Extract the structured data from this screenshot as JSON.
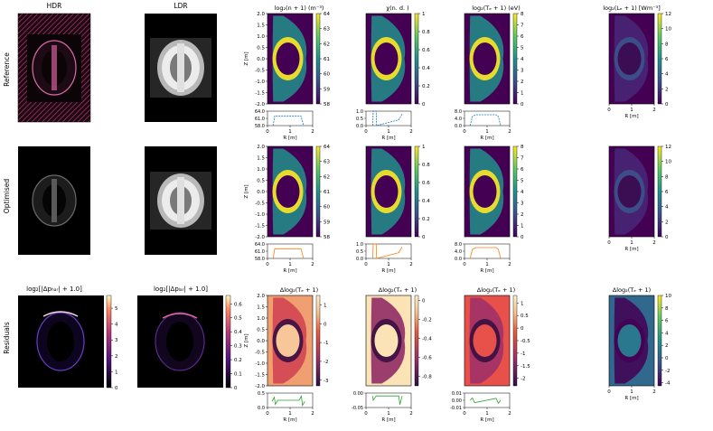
{
  "row_labels": [
    "Reference",
    "Optimised",
    "Residuals"
  ],
  "image_titles": {
    "hdr": "HDR",
    "ldr": "LDR",
    "res_hdr": "log₂[|Δpₕₐᵣ| + 1.0]",
    "res_ldr": "log₂[|Δpₗₐᵣ| + 1.0]"
  },
  "colors": {
    "viridis_low": "#440154",
    "viridis_mid": "#21918c",
    "viridis_high": "#fde725",
    "magma_low": "#000004",
    "magma_high": "#fcfdbf",
    "residual_pos": "#b40426",
    "residual_zero": "#f7f7f7",
    "residual_neg": "#3b4cc0",
    "profile_ref": "#1f77b4",
    "profile_opt": "#ff7f0e",
    "profile_res": "#2ca02c"
  },
  "axis_labels": {
    "r_axis": "R [m]",
    "z_axis": "Z [m]"
  },
  "chart_data": [
    {
      "type": "heatmap",
      "id": "ref-density",
      "title": "log₂(n + 1) (m⁻³)",
      "xlabel": "R [m]",
      "ylabel": "Z [m]",
      "xlim": [
        0,
        2
      ],
      "ylim": [
        -2.0,
        2.0
      ],
      "xticks": [
        0,
        1,
        2
      ],
      "yticks": [
        -2.0,
        -1.5,
        -1.0,
        -0.5,
        0.0,
        0.5,
        1.0,
        1.5,
        2.0
      ],
      "colorbar": {
        "ticks": [
          58,
          59,
          60,
          61,
          62,
          63,
          64
        ],
        "range": [
          58,
          64
        ],
        "cmap": "viridis"
      },
      "profile": {
        "yticks": [
          "64.0",
          "61.0",
          "58.0"
        ],
        "ylim": [
          58,
          64
        ],
        "style": "dashed",
        "x": [
          0.25,
          0.32,
          0.45,
          1.4,
          1.48,
          1.6
        ],
        "y": [
          58,
          62,
          62,
          62,
          62,
          58
        ]
      }
    },
    {
      "type": "heatmap",
      "id": "ref-chi",
      "title": "χ(n. d. )",
      "xlabel": "R [m]",
      "ylabel": "",
      "xlim": [
        0,
        2
      ],
      "ylim": [
        -2.0,
        2.0
      ],
      "xticks": [
        0,
        1,
        2
      ],
      "colorbar": {
        "ticks": [
          0.0,
          0.2,
          0.4,
          0.6,
          0.8,
          1.0
        ],
        "range": [
          0,
          1
        ],
        "cmap": "viridis"
      },
      "profile": {
        "yticks": [
          "1.0",
          "0.5",
          "0.0"
        ],
        "ylim": [
          0,
          1
        ],
        "style": "dashed",
        "x": [
          0.3,
          0.32,
          0.45,
          0.47,
          1.45,
          1.6
        ],
        "y": [
          0,
          1,
          1,
          0,
          0.4,
          0.8
        ]
      }
    },
    {
      "type": "heatmap",
      "id": "ref-te",
      "title": "log₂(Tₑ + 1) (eV)",
      "xlabel": "R [m]",
      "ylabel": "",
      "xlim": [
        0,
        2
      ],
      "ylim": [
        -2.0,
        2.0
      ],
      "xticks": [
        0,
        1,
        2
      ],
      "colorbar": {
        "ticks": [
          0,
          1,
          2,
          3,
          4,
          5,
          6,
          7,
          8
        ],
        "range": [
          0,
          8
        ],
        "cmap": "viridis"
      },
      "profile": {
        "yticks": [
          "8.0",
          "4.0",
          "0.0"
        ],
        "ylim": [
          0,
          8
        ],
        "style": "dashed",
        "x": [
          0.25,
          0.35,
          0.5,
          1.4,
          1.5,
          1.6
        ],
        "y": [
          0,
          5,
          6,
          6,
          5,
          0
        ]
      }
    },
    {
      "type": "heatmap",
      "id": "ref-emission",
      "title": "log₂(Lₑ + 1) [Wm⁻³]",
      "xlabel": "R [m]",
      "ylabel": "",
      "xlim": [
        0,
        2
      ],
      "ylim": [
        -2.0,
        2.0
      ],
      "xticks": [
        0,
        1,
        2
      ],
      "colorbar": {
        "ticks": [
          0,
          2,
          4,
          6,
          8,
          10,
          12
        ],
        "range": [
          0,
          12
        ],
        "cmap": "viridis"
      }
    },
    {
      "type": "heatmap",
      "id": "opt-density",
      "title": "",
      "xlabel": "R [m]",
      "ylabel": "Z [m]",
      "xlim": [
        0,
        2
      ],
      "ylim": [
        -2.0,
        2.0
      ],
      "xticks": [
        0,
        1,
        2
      ],
      "yticks": [
        -2.0,
        -1.5,
        -1.0,
        -0.5,
        0.0,
        0.5,
        1.0,
        1.5,
        2.0
      ],
      "colorbar": {
        "ticks": [
          58,
          59,
          60,
          61,
          62,
          63,
          64
        ],
        "range": [
          58,
          64
        ],
        "cmap": "viridis"
      },
      "profile": {
        "yticks": [
          "64.0",
          "61.0",
          "58.0"
        ],
        "ylim": [
          58,
          64
        ],
        "style": "solid",
        "x": [
          0.25,
          0.32,
          0.45,
          1.4,
          1.48,
          1.6
        ],
        "y": [
          58,
          62,
          62,
          62,
          62,
          58
        ]
      }
    },
    {
      "type": "heatmap",
      "id": "opt-chi",
      "title": "",
      "xlabel": "R [m]",
      "ylabel": "",
      "xlim": [
        0,
        2
      ],
      "ylim": [
        -2.0,
        2.0
      ],
      "xticks": [
        0,
        1,
        2
      ],
      "colorbar": {
        "ticks": [
          0.0,
          0.2,
          0.4,
          0.6,
          0.8,
          1.0
        ],
        "range": [
          0,
          1
        ],
        "cmap": "viridis"
      },
      "profile": {
        "yticks": [
          "1.0",
          "0.5",
          "0.0"
        ],
        "ylim": [
          0,
          1
        ],
        "style": "solid",
        "x": [
          0.3,
          0.32,
          0.45,
          0.47,
          1.45,
          1.6
        ],
        "y": [
          0,
          1,
          1,
          0,
          0.4,
          0.8
        ]
      }
    },
    {
      "type": "heatmap",
      "id": "opt-te",
      "title": "",
      "xlabel": "R [m]",
      "ylabel": "",
      "xlim": [
        0,
        2
      ],
      "ylim": [
        -2.0,
        2.0
      ],
      "xticks": [
        0,
        1,
        2
      ],
      "colorbar": {
        "ticks": [
          0,
          1,
          2,
          3,
          4,
          5,
          6,
          7,
          8
        ],
        "range": [
          0,
          8
        ],
        "cmap": "viridis"
      },
      "profile": {
        "yticks": [
          "8.0",
          "4.0",
          "0.0"
        ],
        "ylim": [
          0,
          8
        ],
        "style": "solid",
        "x": [
          0.25,
          0.35,
          0.5,
          1.4,
          1.5,
          1.6
        ],
        "y": [
          0,
          5,
          6,
          6,
          5,
          0
        ]
      }
    },
    {
      "type": "heatmap",
      "id": "opt-emission",
      "title": "",
      "xlabel": "R [m]",
      "ylabel": "",
      "xlim": [
        0,
        2
      ],
      "ylim": [
        -2.0,
        2.0
      ],
      "xticks": [
        0,
        1,
        2
      ],
      "colorbar": {
        "ticks": [
          0,
          2,
          4,
          6,
          8,
          10,
          12
        ],
        "range": [
          0,
          12
        ],
        "cmap": "viridis"
      }
    },
    {
      "type": "heatmap",
      "id": "res-density",
      "title": "Δlog₂(Tₑ + 1)",
      "xlabel": "R [m]",
      "ylabel": "Z [m]",
      "xlim": [
        0,
        2
      ],
      "ylim": [
        -2.0,
        2.0
      ],
      "xticks": [
        0,
        1,
        2
      ],
      "yticks": [
        -2.0,
        -1.5,
        -1.0,
        -0.5,
        0.0,
        0.5,
        1.0,
        1.5,
        2.0
      ],
      "colorbar": {
        "ticks": [
          -3,
          -2,
          -1,
          0,
          1
        ],
        "range": [
          -3.3,
          1.5
        ],
        "cmap": "residual"
      },
      "profile": {
        "yticks": [
          "0.5",
          "0.0"
        ],
        "ylim": [
          -0.6,
          0.8
        ],
        "style": "solid",
        "x": [
          0.2,
          0.3,
          0.35,
          0.45,
          1.4,
          1.5,
          1.55,
          1.65
        ],
        "y": [
          0,
          0.4,
          -0.3,
          0.1,
          0.1,
          0.5,
          -0.4,
          0
        ]
      }
    },
    {
      "type": "heatmap",
      "id": "res-chi",
      "title": "Δlog₂(Tₑ + 1)",
      "xlabel": "R [m]",
      "ylabel": "",
      "xlim": [
        0,
        2
      ],
      "ylim": [
        -2.0,
        2.0
      ],
      "xticks": [
        0,
        1,
        2
      ],
      "colorbar": {
        "ticks": [
          -0.8,
          -0.6,
          -0.4,
          -0.2,
          0.0
        ],
        "range": [
          -0.9,
          0.05
        ],
        "cmap": "residual"
      },
      "profile": {
        "yticks": [
          "0.00",
          "-0.05"
        ],
        "ylim": [
          -0.08,
          0.02
        ],
        "style": "solid",
        "x": [
          0.3,
          0.32,
          0.45,
          1.45,
          1.5,
          1.6
        ],
        "y": [
          0,
          -0.03,
          0,
          0,
          -0.06,
          0
        ]
      }
    },
    {
      "type": "heatmap",
      "id": "res-te",
      "title": "Δlog₂(Tₑ + 1)",
      "xlabel": "R [m]",
      "ylabel": "",
      "xlim": [
        0,
        2
      ],
      "ylim": [
        -2.0,
        2.0
      ],
      "xticks": [
        0,
        1,
        2
      ],
      "colorbar": {
        "ticks": [
          -2.0,
          -1.5,
          -1.0,
          -0.5,
          0.0,
          0.5,
          1.0
        ],
        "range": [
          -2.3,
          1.3
        ],
        "cmap": "residual"
      },
      "profile": {
        "yticks": [
          "0.01",
          "0.00",
          "-0.01"
        ],
        "ylim": [
          -0.015,
          0.015
        ],
        "style": "solid",
        "x": [
          0.25,
          0.35,
          0.45,
          1.4,
          1.5,
          1.6
        ],
        "y": [
          0,
          0.005,
          -0.005,
          0.004,
          -0.006,
          0
        ]
      }
    },
    {
      "type": "heatmap",
      "id": "res-emission",
      "title": "Δlog₂(Tₑ + 1)",
      "xlabel": "R [m]",
      "ylabel": "",
      "xlim": [
        0,
        2
      ],
      "ylim": [
        -2.0,
        2.0
      ],
      "xticks": [
        0,
        1,
        2
      ],
      "colorbar": {
        "ticks": [
          -4,
          -2,
          0,
          2,
          4,
          6,
          8,
          10
        ],
        "range": [
          -4.5,
          10
        ],
        "cmap": "viridis"
      }
    }
  ],
  "image_colorbars": {
    "res_hdr": {
      "ticks": [
        0,
        1,
        2,
        3,
        4,
        5
      ],
      "range": [
        0,
        5.8
      ]
    },
    "res_ldr": {
      "ticks": [
        0.0,
        0.1,
        0.2,
        0.3,
        0.4,
        0.5,
        0.6
      ],
      "range": [
        0,
        0.66
      ]
    }
  }
}
